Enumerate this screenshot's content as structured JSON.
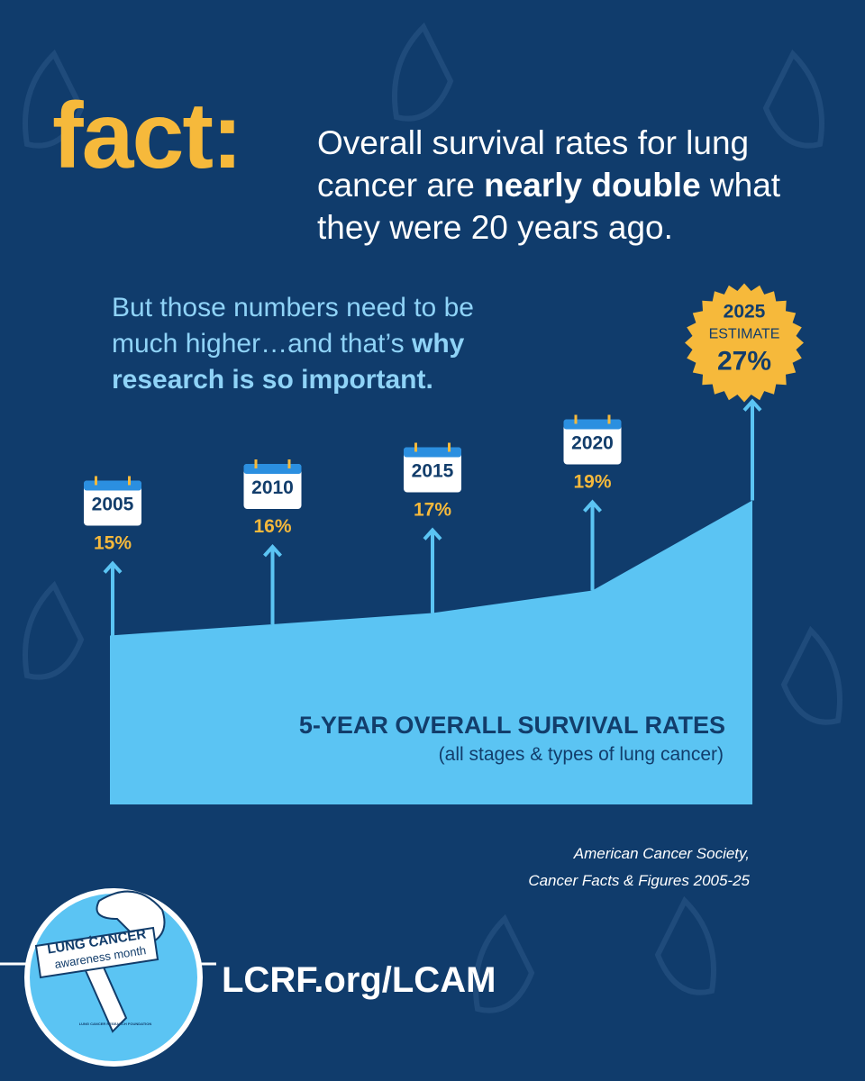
{
  "header": {
    "label": "fact:",
    "text_parts": [
      "Overall survival rates for lung cancer are ",
      "nearly double",
      " what they were 20 years ago."
    ]
  },
  "intro_parts": [
    "But those numbers need to be much higher…and that’s ",
    "why research is so important."
  ],
  "chart_data": {
    "type": "area",
    "title": "5-YEAR OVERALL SURVIVAL RATES",
    "subtitle": "(all stages & types of lung cancer)",
    "x": [
      2005,
      2010,
      2015,
      2020,
      2025
    ],
    "values": [
      15,
      16,
      17,
      19,
      27
    ],
    "value_labels": [
      "15%",
      "16%",
      "17%",
      "19%",
      "27%"
    ],
    "annotation": "ESTIMATE",
    "color": "#5bc4f3",
    "label_color": "#f6b93b"
  },
  "source": [
    "American Cancer Society,",
    "Cancer Facts & Figures 2005-25"
  ],
  "badge": {
    "title": "LUNG CANCER",
    "subtitle": "awareness month",
    "org": "LUNG CANCER RESEARCH FOUNDATION"
  },
  "url": "LCRF.org/LCAM"
}
